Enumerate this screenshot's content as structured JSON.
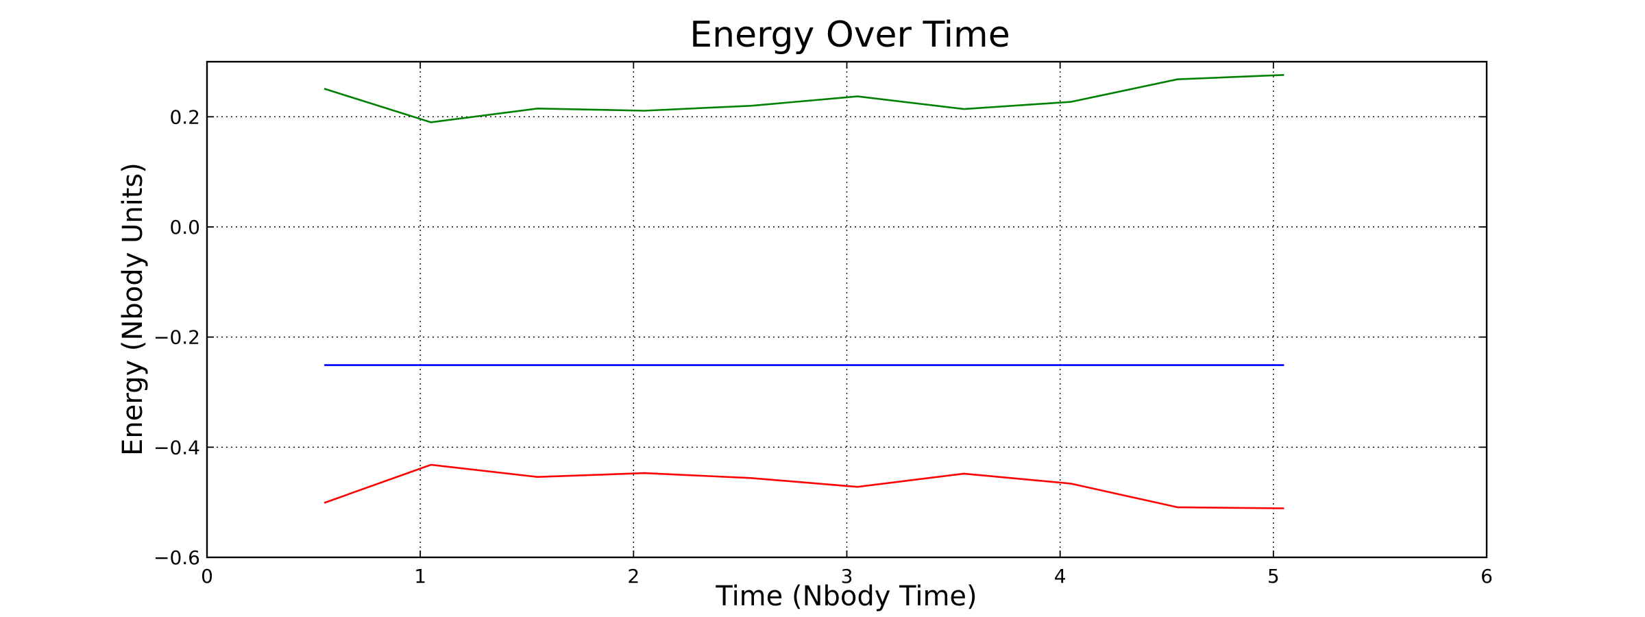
{
  "chart_data": {
    "type": "line",
    "title": "Energy Over Time",
    "xlabel": "Time (Nbody Time)",
    "ylabel": "Energy (Nbody Units)",
    "xlim": [
      0,
      6
    ],
    "ylim": [
      -0.6,
      0.3
    ],
    "xticks": [
      0,
      1,
      2,
      3,
      4,
      5,
      6
    ],
    "xtick_labels": [
      "0",
      "1",
      "2",
      "3",
      "4",
      "5",
      "6"
    ],
    "yticks": [
      -0.6,
      -0.4,
      -0.2,
      0.0,
      0.2
    ],
    "ytick_labels": [
      "−0.6",
      "−0.4",
      "−0.2",
      "0.0",
      "0.2"
    ],
    "grid": true,
    "x": [
      0.55,
      1.05,
      1.55,
      2.05,
      2.55,
      3.05,
      3.55,
      4.05,
      4.55,
      5.05
    ],
    "series": [
      {
        "color": "#008000",
        "values": [
          0.251,
          0.19,
          0.215,
          0.211,
          0.22,
          0.237,
          0.214,
          0.227,
          0.268,
          0.276
        ]
      },
      {
        "color": "#0000ff",
        "values": [
          -0.251,
          -0.251,
          -0.251,
          -0.251,
          -0.251,
          -0.251,
          -0.251,
          -0.251,
          -0.251,
          -0.251
        ]
      },
      {
        "color": "#ff0000",
        "values": [
          -0.501,
          -0.432,
          -0.454,
          -0.447,
          -0.456,
          -0.472,
          -0.448,
          -0.466,
          -0.509,
          -0.511
        ]
      }
    ]
  }
}
